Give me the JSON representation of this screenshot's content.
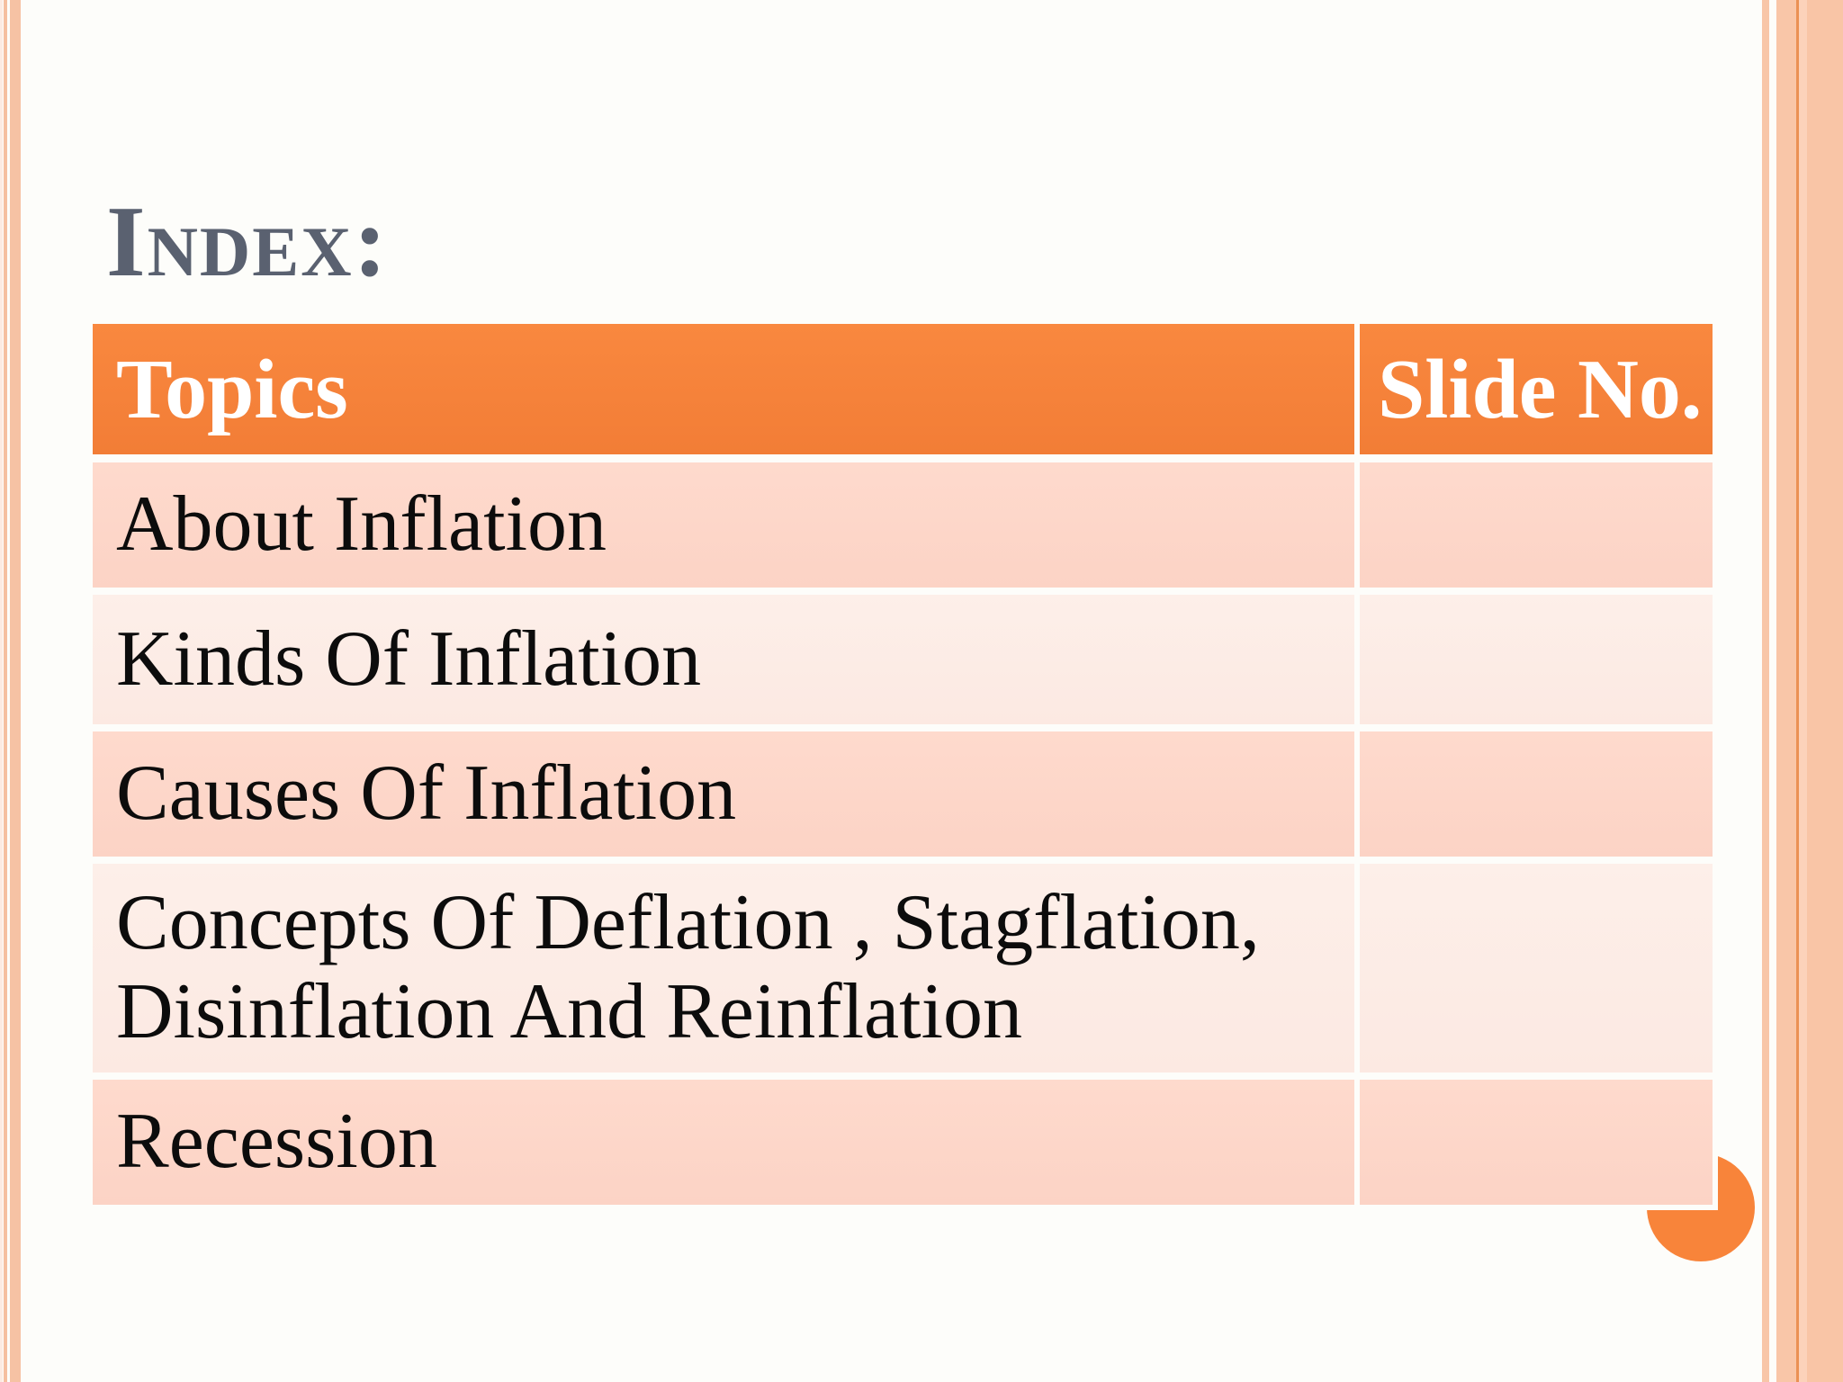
{
  "slide": {
    "title": "Index:"
  },
  "table": {
    "headers": [
      "Topics",
      "Slide No."
    ],
    "rows": [
      {
        "topic": "About Inflation",
        "slide_no": ""
      },
      {
        "topic": "Kinds Of Inflation",
        "slide_no": ""
      },
      {
        "topic": "Causes Of Inflation",
        "slide_no": ""
      },
      {
        "topic": "Concepts Of Deflation , Stagflation, Disinflation  And Reinflation",
        "slide_no": ""
      },
      {
        "topic": "Recession",
        "slide_no": ""
      }
    ]
  },
  "colors": {
    "header_orange": "#f8833a",
    "accent_circle_orange": "#f8843a",
    "row_peach_dark": "#fdd7ca",
    "row_peach_light": "#fdece6",
    "title_gray": "#5a6170",
    "border_peach": "#f6c2a4",
    "border_accent_line": "#eb9154",
    "header_text": "#ffffff",
    "body_text": "#0c0c0c"
  }
}
